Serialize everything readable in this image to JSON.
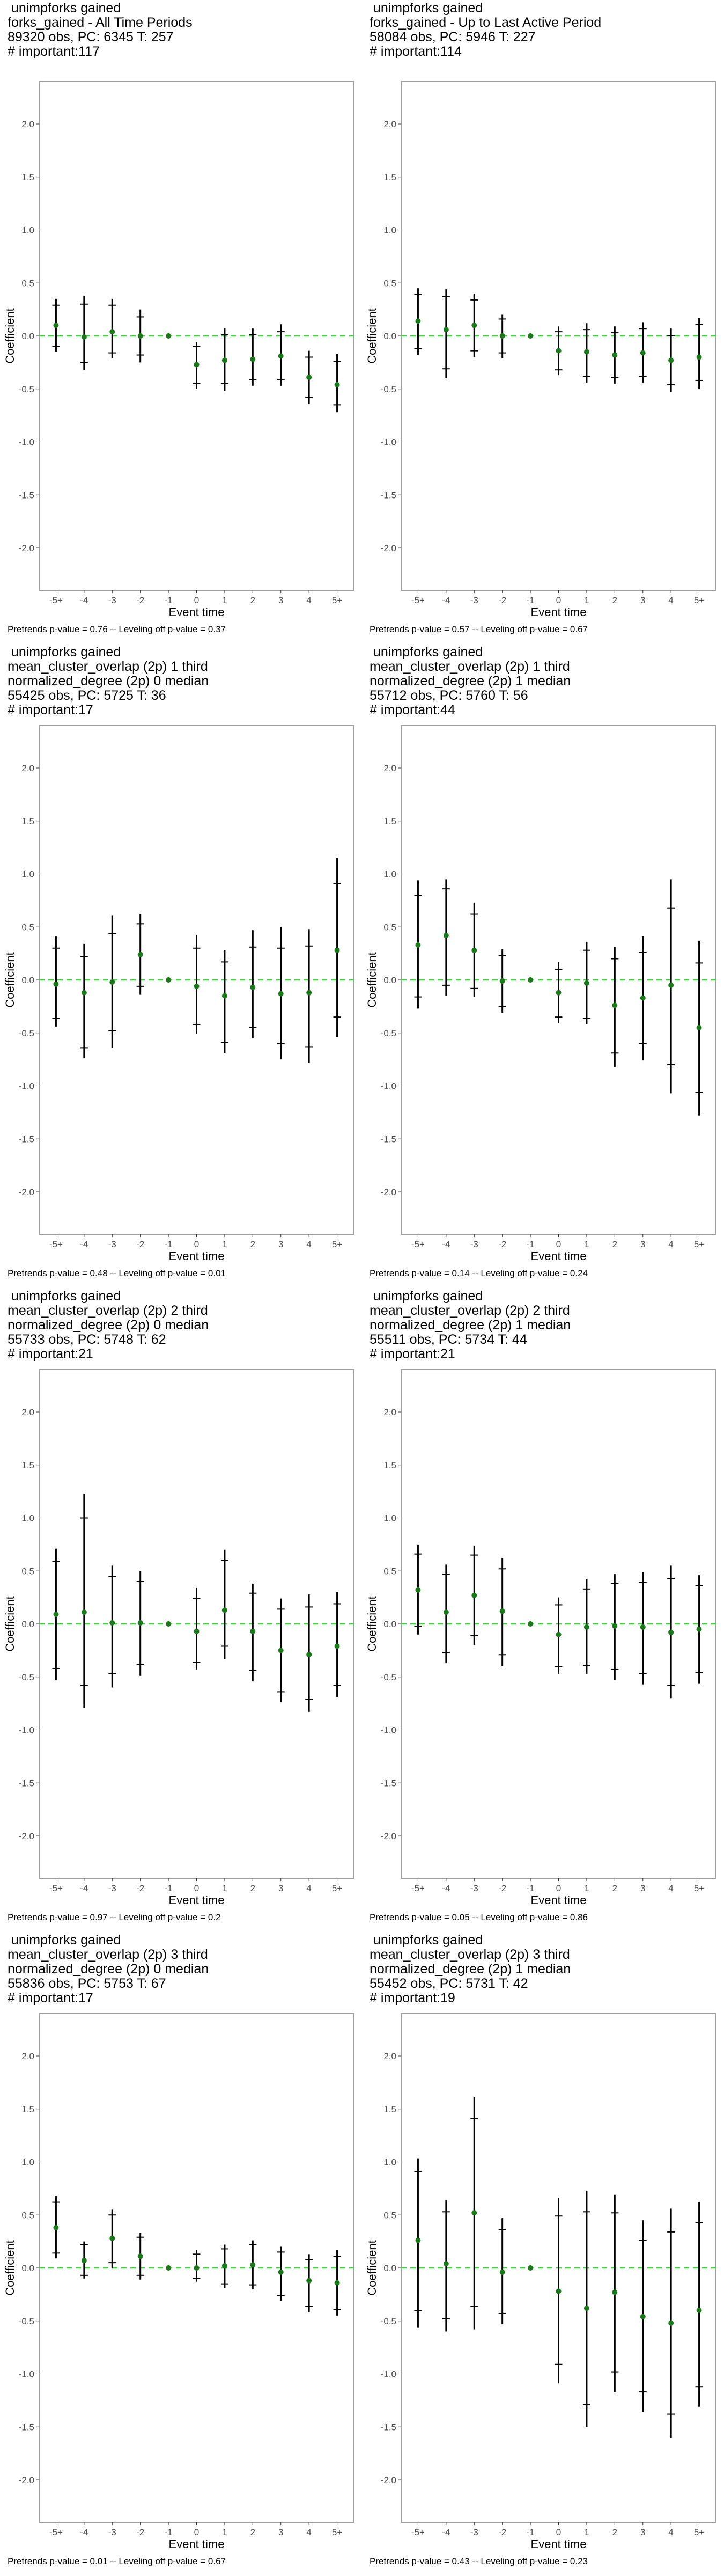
{
  "chart_data": [
    {
      "type": "scatter",
      "title_lines": [
        " unimpforks gained",
        "forks_gained - All Time Periods",
        "89320 obs, PC: 6345 T: 257",
        "# important:117"
      ],
      "xlabel": "Event time",
      "ylabel": "Coefficient",
      "footer": "Pretrends p-value = 0.76 -- Leveling off p-value = 0.37",
      "categories": [
        "-5+",
        "-4",
        "-3",
        "-2",
        "-1",
        "0",
        "1",
        "2",
        "3",
        "4",
        "5+"
      ],
      "ylim": [
        -2.4,
        2.4
      ],
      "yticks": [
        "2.0",
        "1.5",
        "1.0",
        "0.5",
        "0.0",
        "-0.5",
        "-1.0",
        "-1.5",
        "-2.0"
      ],
      "estimates": [
        0.1,
        -0.01,
        0.04,
        0.0,
        0.0,
        -0.27,
        -0.23,
        -0.22,
        -0.19,
        -0.39,
        -0.46
      ],
      "ci95": [
        [
          -0.15,
          0.35
        ],
        [
          -0.32,
          0.38
        ],
        [
          -0.21,
          0.35
        ],
        [
          -0.25,
          0.25
        ],
        [
          0.0,
          0.0
        ],
        [
          -0.5,
          -0.06
        ],
        [
          -0.52,
          0.07
        ],
        [
          -0.47,
          0.07
        ],
        [
          -0.47,
          0.11
        ],
        [
          -0.64,
          -0.14
        ],
        [
          -0.72,
          -0.17
        ]
      ],
      "ci90": [
        [
          -0.1,
          0.29
        ],
        [
          -0.25,
          0.3
        ],
        [
          -0.16,
          0.29
        ],
        [
          -0.18,
          0.18
        ],
        [
          0.0,
          0.0
        ],
        [
          -0.45,
          -0.1
        ],
        [
          -0.45,
          0.01
        ],
        [
          -0.41,
          0.01
        ],
        [
          -0.41,
          0.04
        ],
        [
          -0.58,
          -0.2
        ],
        [
          -0.65,
          -0.24
        ]
      ]
    },
    {
      "type": "scatter",
      "title_lines": [
        " unimpforks gained",
        "forks_gained - Up to Last Active Period",
        "58084 obs, PC: 5946 T: 227",
        "# important:114"
      ],
      "xlabel": "Event time",
      "ylabel": "Coefficient",
      "footer": "Pretrends p-value = 0.57 -- Leveling off p-value = 0.67",
      "categories": [
        "-5+",
        "-4",
        "-3",
        "-2",
        "-1",
        "0",
        "1",
        "2",
        "3",
        "4",
        "5+"
      ],
      "ylim": [
        -2.4,
        2.4
      ],
      "yticks": [
        "2.0",
        "1.5",
        "1.0",
        "0.5",
        "0.0",
        "-0.5",
        "-1.0",
        "-1.5",
        "-2.0"
      ],
      "estimates": [
        0.14,
        0.06,
        0.1,
        0.0,
        0.0,
        -0.14,
        -0.15,
        -0.18,
        -0.16,
        -0.23,
        -0.2
      ],
      "ci95": [
        [
          -0.18,
          0.45
        ],
        [
          -0.4,
          0.44
        ],
        [
          -0.2,
          0.4
        ],
        [
          -0.21,
          0.2
        ],
        [
          0.0,
          0.0
        ],
        [
          -0.37,
          0.09
        ],
        [
          -0.44,
          0.12
        ],
        [
          -0.45,
          0.09
        ],
        [
          -0.44,
          0.13
        ],
        [
          -0.53,
          0.07
        ],
        [
          -0.5,
          0.17
        ]
      ],
      "ci90": [
        [
          -0.12,
          0.39
        ],
        [
          -0.31,
          0.37
        ],
        [
          -0.14,
          0.34
        ],
        [
          -0.16,
          0.16
        ],
        [
          0.0,
          0.0
        ],
        [
          -0.32,
          0.04
        ],
        [
          -0.38,
          0.06
        ],
        [
          -0.39,
          0.03
        ],
        [
          -0.38,
          0.07
        ],
        [
          -0.46,
          0.0
        ],
        [
          -0.42,
          0.11
        ]
      ]
    },
    {
      "type": "scatter",
      "title_lines": [
        " unimpforks gained",
        "mean_cluster_overlap (2p) 1 third",
        "normalized_degree (2p) 0 median",
        "55425 obs, PC: 5725 T: 36",
        "# important:17"
      ],
      "xlabel": "Event time",
      "ylabel": "Coefficient",
      "footer": "Pretrends p-value = 0.48 -- Leveling off p-value = 0.01",
      "categories": [
        "-5+",
        "-4",
        "-3",
        "-2",
        "-1",
        "0",
        "1",
        "2",
        "3",
        "4",
        "5+"
      ],
      "ylim": [
        -2.4,
        2.4
      ],
      "yticks": [
        "2.0",
        "1.5",
        "1.0",
        "0.5",
        "0.0",
        "-0.5",
        "-1.0",
        "-1.5",
        "-2.0"
      ],
      "estimates": [
        -0.04,
        -0.12,
        -0.02,
        0.24,
        0.0,
        -0.06,
        -0.15,
        -0.07,
        -0.13,
        -0.12,
        0.28
      ],
      "ci95": [
        [
          -0.44,
          0.41
        ],
        [
          -0.74,
          0.34
        ],
        [
          -0.64,
          0.61
        ],
        [
          -0.14,
          0.62
        ],
        [
          0.0,
          0.0
        ],
        [
          -0.51,
          0.42
        ],
        [
          -0.69,
          0.28
        ],
        [
          -0.55,
          0.47
        ],
        [
          -0.75,
          0.5
        ],
        [
          -0.78,
          0.48
        ],
        [
          -0.54,
          1.15
        ]
      ],
      "ci90": [
        [
          -0.36,
          0.3
        ],
        [
          -0.64,
          0.22
        ],
        [
          -0.48,
          0.44
        ],
        [
          -0.06,
          0.53
        ],
        [
          0.0,
          0.0
        ],
        [
          -0.42,
          0.3
        ],
        [
          -0.59,
          0.17
        ],
        [
          -0.45,
          0.31
        ],
        [
          -0.6,
          0.3
        ],
        [
          -0.63,
          0.32
        ],
        [
          -0.35,
          0.91
        ]
      ]
    },
    {
      "type": "scatter",
      "title_lines": [
        " unimpforks gained",
        "mean_cluster_overlap (2p) 1 third",
        "normalized_degree (2p) 1 median",
        "55712 obs, PC: 5760 T: 56",
        "# important:44"
      ],
      "xlabel": "Event time",
      "ylabel": "Coefficient",
      "footer": "Pretrends p-value = 0.14 -- Leveling off p-value = 0.24",
      "categories": [
        "-5+",
        "-4",
        "-3",
        "-2",
        "-1",
        "0",
        "1",
        "2",
        "3",
        "4",
        "5+"
      ],
      "ylim": [
        -2.4,
        2.4
      ],
      "yticks": [
        "2.0",
        "1.5",
        "1.0",
        "0.5",
        "0.0",
        "-0.5",
        "-1.0",
        "-1.5",
        "-2.0"
      ],
      "estimates": [
        0.33,
        0.42,
        0.28,
        -0.01,
        0.0,
        -0.12,
        -0.03,
        -0.24,
        -0.17,
        -0.05,
        -0.45
      ],
      "ci95": [
        [
          -0.27,
          0.94
        ],
        [
          -0.15,
          0.95
        ],
        [
          -0.16,
          0.73
        ],
        [
          -0.31,
          0.29
        ],
        [
          0.0,
          0.0
        ],
        [
          -0.41,
          0.17
        ],
        [
          -0.42,
          0.36
        ],
        [
          -0.82,
          0.31
        ],
        [
          -0.76,
          0.41
        ],
        [
          -1.07,
          0.95
        ],
        [
          -1.28,
          0.37
        ]
      ],
      "ci90": [
        [
          -0.16,
          0.8
        ],
        [
          -0.05,
          0.86
        ],
        [
          -0.08,
          0.62
        ],
        [
          -0.25,
          0.23
        ],
        [
          0.0,
          0.0
        ],
        [
          -0.35,
          0.1
        ],
        [
          -0.36,
          0.28
        ],
        [
          -0.69,
          0.2
        ],
        [
          -0.6,
          0.26
        ],
        [
          -0.8,
          0.68
        ],
        [
          -1.06,
          0.16
        ]
      ]
    },
    {
      "type": "scatter",
      "title_lines": [
        " unimpforks gained",
        "mean_cluster_overlap (2p) 2 third",
        "normalized_degree (2p) 0 median",
        "55733 obs, PC: 5748 T: 62",
        "# important:21"
      ],
      "xlabel": "Event time",
      "ylabel": "Coefficient",
      "footer": "Pretrends p-value = 0.97 -- Leveling off p-value = 0.2",
      "categories": [
        "-5+",
        "-4",
        "-3",
        "-2",
        "-1",
        "0",
        "1",
        "2",
        "3",
        "4",
        "5+"
      ],
      "ylim": [
        -2.4,
        2.4
      ],
      "yticks": [
        "2.0",
        "1.5",
        "1.0",
        "0.5",
        "0.0",
        "-0.5",
        "-1.0",
        "-1.5",
        "-2.0"
      ],
      "estimates": [
        0.09,
        0.11,
        0.01,
        0.01,
        0.0,
        -0.07,
        0.13,
        -0.07,
        -0.25,
        -0.29,
        -0.21
      ],
      "ci95": [
        [
          -0.53,
          0.71
        ],
        [
          -0.79,
          1.23
        ],
        [
          -0.6,
          0.55
        ],
        [
          -0.49,
          0.5
        ],
        [
          0.0,
          0.0
        ],
        [
          -0.43,
          0.34
        ],
        [
          -0.33,
          0.7
        ],
        [
          -0.54,
          0.38
        ],
        [
          -0.74,
          0.24
        ],
        [
          -0.83,
          0.28
        ],
        [
          -0.69,
          0.3
        ]
      ],
      "ci90": [
        [
          -0.42,
          0.59
        ],
        [
          -0.58,
          1.0
        ],
        [
          -0.47,
          0.45
        ],
        [
          -0.38,
          0.4
        ],
        [
          0.0,
          0.0
        ],
        [
          -0.36,
          0.24
        ],
        [
          -0.21,
          0.6
        ],
        [
          -0.44,
          0.29
        ],
        [
          -0.64,
          0.14
        ],
        [
          -0.71,
          0.16
        ],
        [
          -0.58,
          0.19
        ]
      ]
    },
    {
      "type": "scatter",
      "title_lines": [
        " unimpforks gained",
        "mean_cluster_overlap (2p) 2 third",
        "normalized_degree (2p) 1 median",
        "55511 obs, PC: 5734 T: 44",
        "# important:21"
      ],
      "xlabel": "Event time",
      "ylabel": "Coefficient",
      "footer": "Pretrends p-value = 0.05 -- Leveling off p-value = 0.86",
      "categories": [
        "-5+",
        "-4",
        "-3",
        "-2",
        "-1",
        "0",
        "1",
        "2",
        "3",
        "4",
        "5+"
      ],
      "ylim": [
        -2.4,
        2.4
      ],
      "yticks": [
        "2.0",
        "1.5",
        "1.0",
        "0.5",
        "0.0",
        "-0.5",
        "-1.0",
        "-1.5",
        "-2.0"
      ],
      "estimates": [
        0.32,
        0.11,
        0.27,
        0.12,
        0.0,
        -0.1,
        -0.03,
        -0.02,
        -0.03,
        -0.08,
        -0.05
      ],
      "ci95": [
        [
          -0.1,
          0.75
        ],
        [
          -0.37,
          0.56
        ],
        [
          -0.2,
          0.74
        ],
        [
          -0.4,
          0.62
        ],
        [
          0.0,
          0.0
        ],
        [
          -0.47,
          0.25
        ],
        [
          -0.47,
          0.42
        ],
        [
          -0.53,
          0.47
        ],
        [
          -0.57,
          0.49
        ],
        [
          -0.7,
          0.55
        ],
        [
          -0.56,
          0.46
        ]
      ],
      "ci90": [
        [
          -0.02,
          0.66
        ],
        [
          -0.27,
          0.47
        ],
        [
          -0.11,
          0.65
        ],
        [
          -0.29,
          0.52
        ],
        [
          0.0,
          0.0
        ],
        [
          -0.4,
          0.18
        ],
        [
          -0.39,
          0.33
        ],
        [
          -0.43,
          0.38
        ],
        [
          -0.47,
          0.39
        ],
        [
          -0.58,
          0.43
        ],
        [
          -0.46,
          0.36
        ]
      ]
    },
    {
      "type": "scatter",
      "title_lines": [
        " unimpforks gained",
        "mean_cluster_overlap (2p) 3 third",
        "normalized_degree (2p) 0 median",
        "55836 obs, PC: 5753 T: 67",
        "# important:17"
      ],
      "xlabel": "Event time",
      "ylabel": "Coefficient",
      "footer": "Pretrends p-value = 0.01 -- Leveling off p-value = 0.67",
      "categories": [
        "-5+",
        "-4",
        "-3",
        "-2",
        "-1",
        "0",
        "1",
        "2",
        "3",
        "4",
        "5+"
      ],
      "ylim": [
        -2.4,
        2.4
      ],
      "yticks": [
        "2.0",
        "1.5",
        "1.0",
        "0.5",
        "0.0",
        "-0.5",
        "-1.0",
        "-1.5",
        "-2.0"
      ],
      "estimates": [
        0.38,
        0.07,
        0.28,
        0.11,
        0.0,
        0.0,
        0.02,
        0.03,
        -0.04,
        -0.12,
        -0.14
      ],
      "ci95": [
        [
          0.09,
          0.68
        ],
        [
          -0.1,
          0.25
        ],
        [
          0.0,
          0.55
        ],
        [
          -0.11,
          0.33
        ],
        [
          0.0,
          0.0
        ],
        [
          -0.13,
          0.17
        ],
        [
          -0.19,
          0.22
        ],
        [
          -0.2,
          0.26
        ],
        [
          -0.31,
          0.2
        ],
        [
          -0.42,
          0.13
        ],
        [
          -0.45,
          0.17
        ]
      ],
      "ci90": [
        [
          0.14,
          0.62
        ],
        [
          -0.07,
          0.22
        ],
        [
          0.05,
          0.5
        ],
        [
          -0.07,
          0.29
        ],
        [
          0.0,
          0.0
        ],
        [
          -0.1,
          0.13
        ],
        [
          -0.15,
          0.18
        ],
        [
          -0.16,
          0.22
        ],
        [
          -0.26,
          0.15
        ],
        [
          -0.36,
          0.08
        ],
        [
          -0.39,
          0.11
        ]
      ]
    },
    {
      "type": "scatter",
      "title_lines": [
        " unimpforks gained",
        "mean_cluster_overlap (2p) 3 third",
        "normalized_degree (2p) 1 median",
        "55452 obs, PC: 5731 T: 42",
        "# important:19"
      ],
      "xlabel": "Event time",
      "ylabel": "Coefficient",
      "footer": "Pretrends p-value = 0.43 -- Leveling off p-value = 0.23",
      "categories": [
        "-5+",
        "-4",
        "-3",
        "-2",
        "-1",
        "0",
        "1",
        "2",
        "3",
        "4",
        "5+"
      ],
      "ylim": [
        -2.4,
        2.4
      ],
      "yticks": [
        "2.0",
        "1.5",
        "1.0",
        "0.5",
        "0.0",
        "-0.5",
        "-1.0",
        "-1.5",
        "-2.0"
      ],
      "estimates": [
        0.26,
        0.04,
        0.52,
        -0.04,
        0.0,
        -0.22,
        -0.38,
        -0.23,
        -0.46,
        -0.52,
        -0.4
      ],
      "ci95": [
        [
          -0.56,
          1.03
        ],
        [
          -0.6,
          0.64
        ],
        [
          -0.58,
          1.61
        ],
        [
          -0.53,
          0.47
        ],
        [
          0.0,
          0.0
        ],
        [
          -1.09,
          0.66
        ],
        [
          -1.5,
          0.73
        ],
        [
          -1.17,
          0.69
        ],
        [
          -1.36,
          0.45
        ],
        [
          -1.6,
          0.56
        ],
        [
          -1.31,
          0.62
        ]
      ],
      "ci90": [
        [
          -0.4,
          0.91
        ],
        [
          -0.48,
          0.53
        ],
        [
          -0.36,
          1.41
        ],
        [
          -0.43,
          0.36
        ],
        [
          0.0,
          0.0
        ],
        [
          -0.91,
          0.49
        ],
        [
          -1.29,
          0.53
        ],
        [
          -0.98,
          0.52
        ],
        [
          -1.17,
          0.26
        ],
        [
          -1.38,
          0.34
        ],
        [
          -1.12,
          0.43
        ]
      ]
    }
  ],
  "colors": {
    "point": "#1a7a1a",
    "zero_line": "#33dd33",
    "error_bar": "#000000",
    "panel_border": "#7f7f7f",
    "axis_text": "#4d4d4d"
  }
}
